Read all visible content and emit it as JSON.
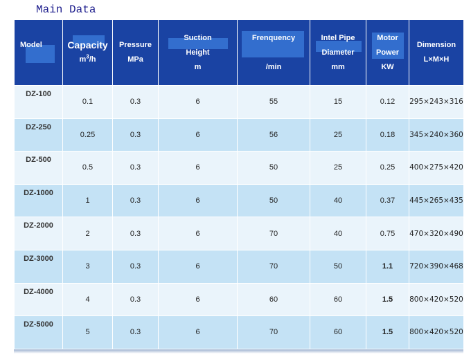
{
  "title": "Main Data",
  "headers": {
    "model": "Model",
    "capacity": "Capacity",
    "capacity_unit_base": "m",
    "capacity_unit_sup": "3",
    "capacity_unit_tail": "/h",
    "pressure": "Pressure",
    "pressure_unit": "MPa",
    "suction": "Suction",
    "suction2": "Height",
    "suction_unit": "m",
    "frequency": "Frenquency",
    "frequency_unit": "/min",
    "pipe1": "Intel Pipe",
    "pipe2": "Diameter",
    "pipe_unit": "mm",
    "motor1": "Motor",
    "motor2": "Power",
    "motor_unit": "KW",
    "dimension": "Dimension",
    "dimension_unit": "L×M×H"
  },
  "rows": [
    {
      "model": "DZ-100",
      "capacity": "0.1",
      "pressure": "0.3",
      "suction": "6",
      "frequency": "55",
      "diameter": "15",
      "power": "0.12",
      "dimension": "295×243×316"
    },
    {
      "model": "DZ-250",
      "capacity": "0.25",
      "pressure": "0.3",
      "suction": "6",
      "frequency": "56",
      "diameter": "25",
      "power": "0.18",
      "dimension": "345×240×360"
    },
    {
      "model": "DZ-500",
      "capacity": "0.5",
      "pressure": "0.3",
      "suction": "6",
      "frequency": "50",
      "diameter": "25",
      "power": "0.25",
      "dimension": "400×275×420"
    },
    {
      "model": "DZ-1000",
      "capacity": "1",
      "pressure": "0.3",
      "suction": "6",
      "frequency": "50",
      "diameter": "40",
      "power": "0.37",
      "dimension": "445×265×435"
    },
    {
      "model": "DZ-2000",
      "capacity": "2",
      "pressure": "0.3",
      "suction": "6",
      "frequency": "70",
      "diameter": "40",
      "power": "0.75",
      "dimension": "470×320×490"
    },
    {
      "model": "DZ-3000",
      "capacity": "3",
      "pressure": "0.3",
      "suction": "6",
      "frequency": "70",
      "diameter": "50",
      "power": "1.1",
      "dimension": "720×390×468"
    },
    {
      "model": "DZ-4000",
      "capacity": "4",
      "pressure": "0.3",
      "suction": "6",
      "frequency": "60",
      "diameter": "60",
      "power": "1.5",
      "dimension": "800×420×520"
    },
    {
      "model": "DZ-5000",
      "capacity": "5",
      "pressure": "0.3",
      "suction": "6",
      "frequency": "70",
      "diameter": "60",
      "power": "1.5",
      "dimension": "800×420×520"
    }
  ]
}
